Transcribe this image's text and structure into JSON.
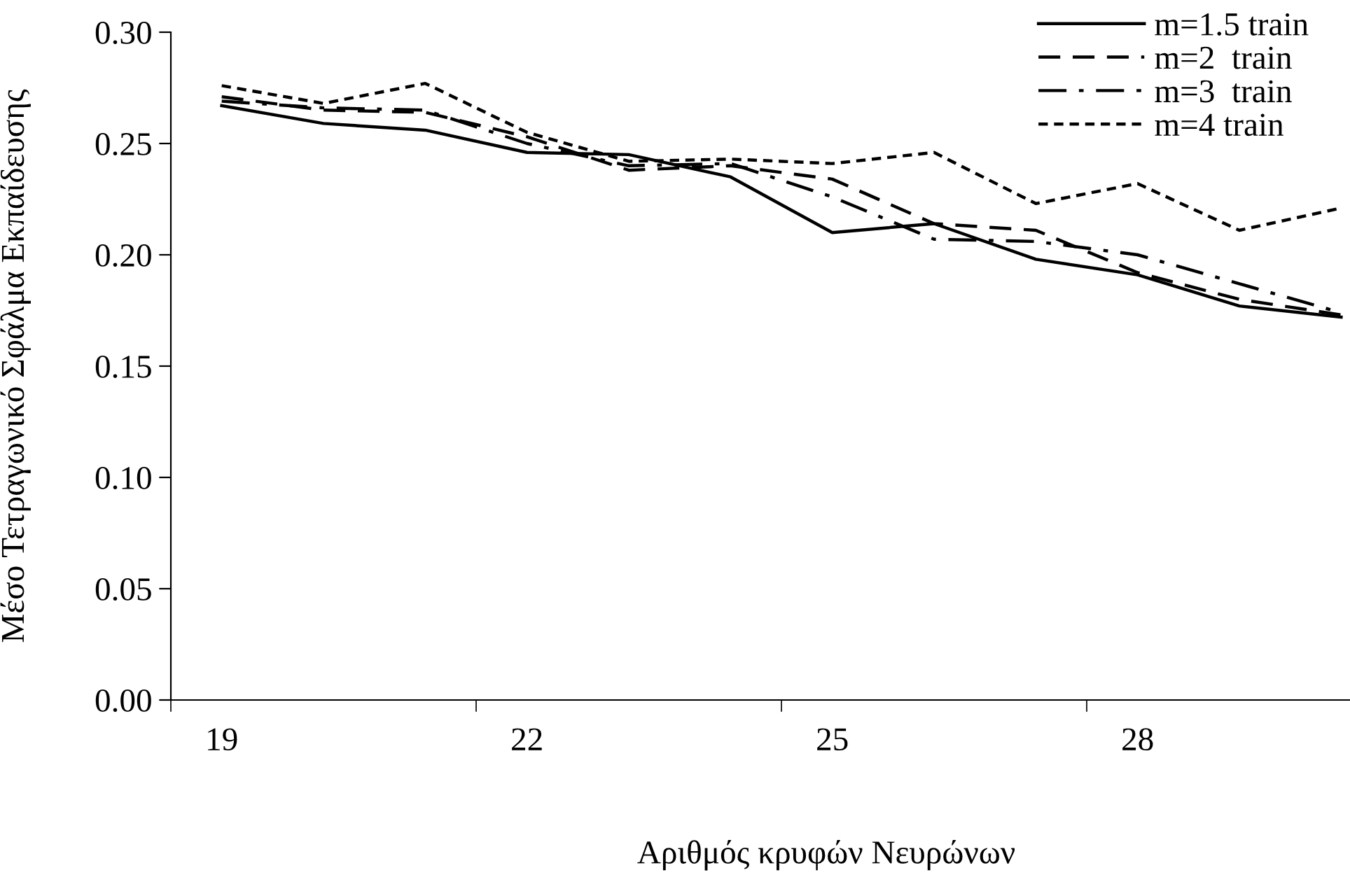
{
  "chart_data": {
    "type": "line",
    "xlabel": "Αριθμός κρυφών Νευρώνων",
    "ylabel": "Μέσο Τετραγωνικό Σφάλμα Εκπαίδευσης",
    "categories": [
      "19",
      null,
      null,
      "22",
      null,
      null,
      "25",
      null,
      null,
      "28",
      null,
      null
    ],
    "series": [
      {
        "name": "m=1.5 train",
        "color": "#000000",
        "line_style": "solid",
        "values": [
          0.267,
          0.259,
          0.256,
          0.246,
          0.245,
          0.235,
          0.21,
          0.214,
          0.198,
          0.191,
          0.177,
          0.172
        ]
      },
      {
        "name": "m=2  train",
        "color": "#000000",
        "line_style": "dashed",
        "values": [
          0.271,
          0.265,
          0.264,
          0.253,
          0.238,
          0.24,
          0.234,
          0.214,
          0.211,
          0.192,
          0.18,
          0.173
        ]
      },
      {
        "name": "m=3  train",
        "color": "#000000",
        "line_style": "dashdot",
        "values": [
          0.269,
          0.266,
          0.265,
          0.25,
          0.24,
          0.241,
          0.226,
          0.207,
          0.206,
          0.2,
          0.187,
          0.174
        ]
      },
      {
        "name": "m=4 train",
        "color": "#000000",
        "line_style": "dotted",
        "values": [
          0.276,
          0.268,
          0.277,
          0.255,
          0.242,
          0.243,
          0.241,
          0.246,
          0.223,
          0.232,
          0.211,
          0.221
        ]
      }
    ],
    "ylim": [
      0,
      0.3
    ],
    "yticks": [
      {
        "value": 0,
        "label": "0.00"
      },
      {
        "value": 0.05,
        "label": "0.05"
      },
      {
        "value": 0.1,
        "label": "0.10"
      },
      {
        "value": 0.15,
        "label": "0.15"
      },
      {
        "value": 0.2,
        "label": "0.20"
      },
      {
        "value": 0.25,
        "label": "0.25"
      },
      {
        "value": 0.3,
        "label": "0.30"
      }
    ],
    "grid": false,
    "legend": "top right",
    "marker": "none"
  }
}
